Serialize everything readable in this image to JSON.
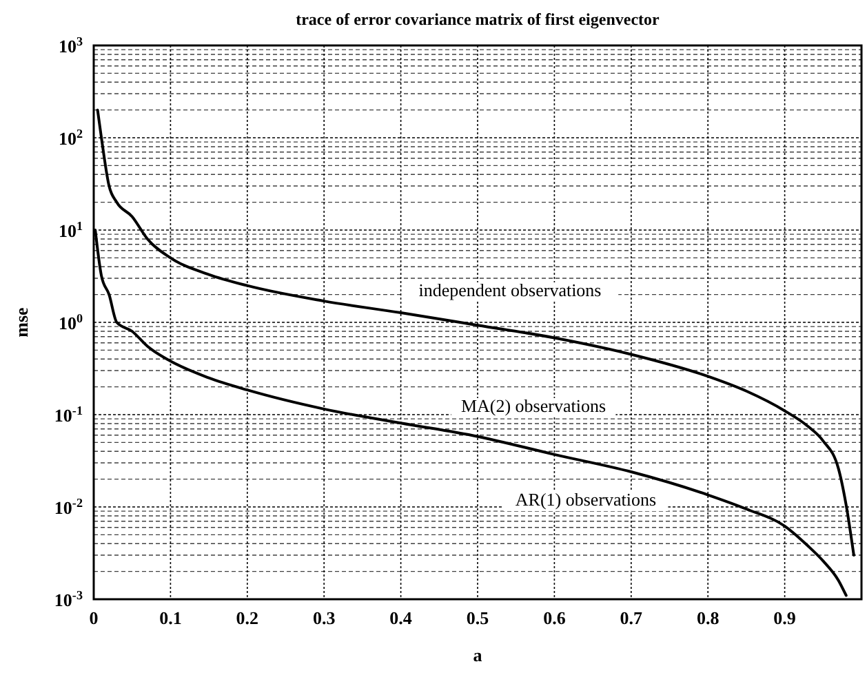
{
  "chart_data": {
    "type": "line",
    "title": "trace of error covariance matrix of first eigenvector",
    "xlabel": "a",
    "ylabel": "mse",
    "log": "y",
    "grid": true,
    "marker": "none",
    "line_style": "solid",
    "xlim": [
      0,
      1
    ],
    "ylim": [
      0.001,
      1000
    ],
    "xticks": [
      0,
      0.1,
      0.2,
      0.3,
      0.4,
      0.5,
      0.6,
      0.7,
      0.8,
      0.9
    ],
    "yticks": [
      {
        "value": 0.001,
        "label": "10$^{-3}$"
      },
      {
        "value": 0.01,
        "label": "10$^{-2}$"
      },
      {
        "value": 0.1,
        "label": "10$^{-1}$"
      },
      {
        "value": 1,
        "label": "10$^{0}$"
      },
      {
        "value": 10,
        "label": "10$^{1}$"
      },
      {
        "value": 100,
        "label": "10$^{2}$"
      },
      {
        "value": 1000,
        "label": "10$^{3}$"
      }
    ],
    "series": [
      {
        "color": "#000000",
        "x": [
          0.005,
          0.01,
          0.02,
          0.03,
          0.05,
          0.07,
          0.1,
          0.15,
          0.2,
          0.3,
          0.4,
          0.5,
          0.6,
          0.7,
          0.8,
          0.85,
          0.9,
          0.93,
          0.95,
          0.97,
          0.98,
          0.99
        ],
        "values": [
          200,
          100,
          30,
          20,
          14,
          8,
          5,
          3.3,
          2.5,
          1.7,
          1.27,
          0.93,
          0.68,
          0.45,
          0.26,
          0.18,
          0.11,
          0.075,
          0.052,
          0.026,
          0.0105,
          0.003
        ]
      },
      {
        "color": "#000000",
        "x": [
          0.002,
          0.01,
          0.02,
          0.03,
          0.05,
          0.07,
          0.1,
          0.15,
          0.2,
          0.3,
          0.4,
          0.5,
          0.6,
          0.7,
          0.8,
          0.85,
          0.9,
          0.93,
          0.95,
          0.97,
          0.98
        ],
        "values": [
          10,
          3.2,
          2,
          1,
          0.8,
          0.55,
          0.38,
          0.25,
          0.185,
          0.115,
          0.081,
          0.058,
          0.037,
          0.024,
          0.0135,
          0.0095,
          0.0062,
          0.0038,
          0.0026,
          0.0016,
          0.0011
        ]
      }
    ],
    "annotations": [
      "independent observations",
      "MA(2) observations",
      "AR(1) observations"
    ]
  }
}
